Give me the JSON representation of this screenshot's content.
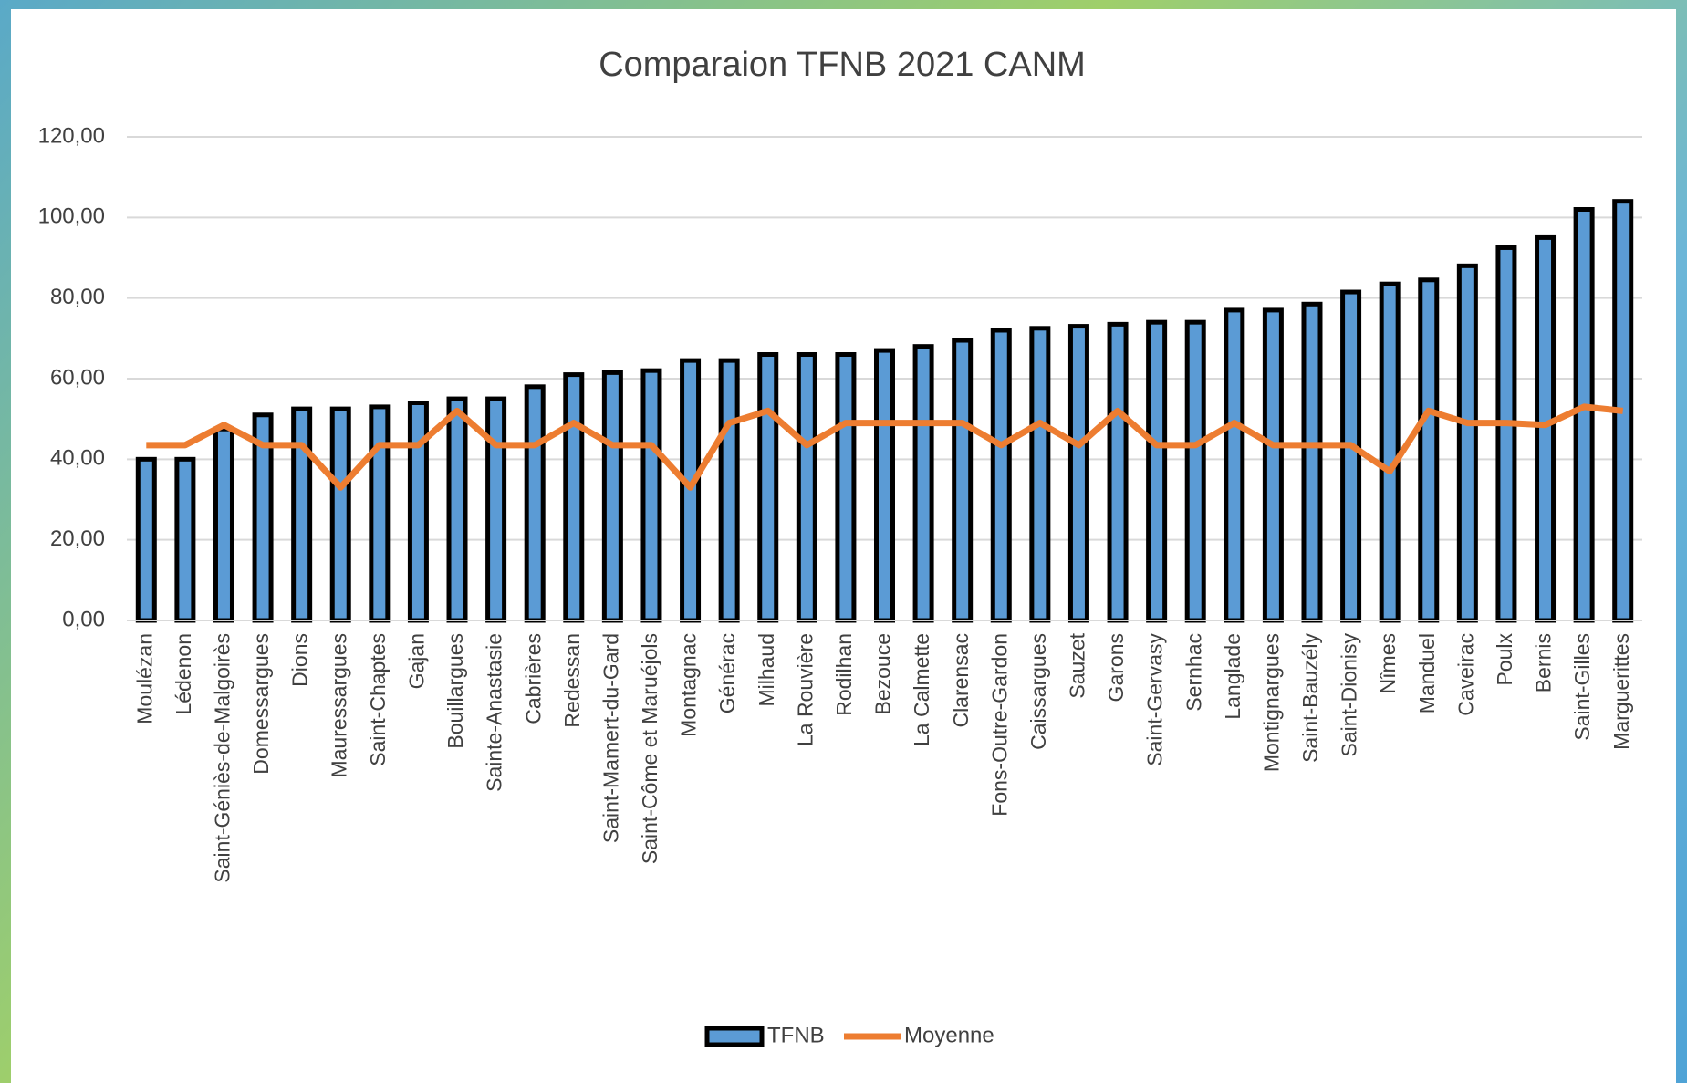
{
  "chart_data": {
    "type": "bar",
    "title": "Comparaion TFNB 2021 CANM",
    "categories": [
      "Moulézan",
      "Lédenon",
      "Saint-Géniès-de-Malgoirès",
      "Domessargues",
      "Dions",
      "Mauressargues",
      "Saint-Chaptes",
      "Gajan",
      "Bouillargues",
      "Sainte-Anastasie",
      "Cabrières",
      "Redessan",
      "Saint-Mamert-du-Gard",
      "Saint-Côme et Maruéjols",
      "Montagnac",
      "Générac",
      "Milhaud",
      "La Rouvière",
      "Rodilhan",
      "Bezouce",
      "La Calmette",
      "Clarensac",
      "Fons-Outre-Gardon",
      "Caissargues",
      "Sauzet",
      "Garons",
      "Saint-Gervasy",
      "Sernhac",
      "Langlade",
      "Montignargues",
      "Saint-Bauzély",
      "Saint-Dionisy",
      "Nîmes",
      "Manduel",
      "Caveirac",
      "Poulx",
      "Bernis",
      "Saint-Gilles",
      "Marguerittes"
    ],
    "series": [
      {
        "name": "TFNB",
        "type": "bar",
        "color": "#5b9bd5",
        "values": [
          40,
          40,
          47.5,
          51,
          52.5,
          52.5,
          53,
          54,
          55,
          55,
          58,
          61,
          61.5,
          62,
          64.5,
          64.5,
          66,
          66,
          66,
          67,
          68,
          69.5,
          72,
          72.5,
          73,
          73.5,
          74,
          74,
          77,
          77,
          78.5,
          81.5,
          83.5,
          84.5,
          88,
          92.5,
          95,
          102,
          104
        ]
      },
      {
        "name": "Moyenne",
        "type": "line",
        "color": "#ed7d31",
        "values": [
          43.5,
          43.5,
          48.5,
          43.5,
          43.5,
          33,
          43.5,
          43.5,
          52,
          43.5,
          43.5,
          49,
          43.5,
          43.5,
          33,
          49,
          52,
          43.5,
          49,
          49,
          49,
          49,
          43.5,
          49,
          43.5,
          52,
          43.5,
          43.5,
          49,
          43.5,
          43.5,
          43.5,
          37,
          52,
          49,
          49,
          48.5,
          53,
          52
        ]
      }
    ],
    "ylim": [
      0,
      120
    ],
    "yticks": [
      {
        "value": 0,
        "label": "0,00"
      },
      {
        "value": 20,
        "label": "20,00"
      },
      {
        "value": 40,
        "label": "40,00"
      },
      {
        "value": 60,
        "label": "60,00"
      },
      {
        "value": 80,
        "label": "80,00"
      },
      {
        "value": 100,
        "label": "100,00"
      },
      {
        "value": 120,
        "label": "120,00"
      }
    ],
    "grid": true,
    "legend": "bottom"
  }
}
